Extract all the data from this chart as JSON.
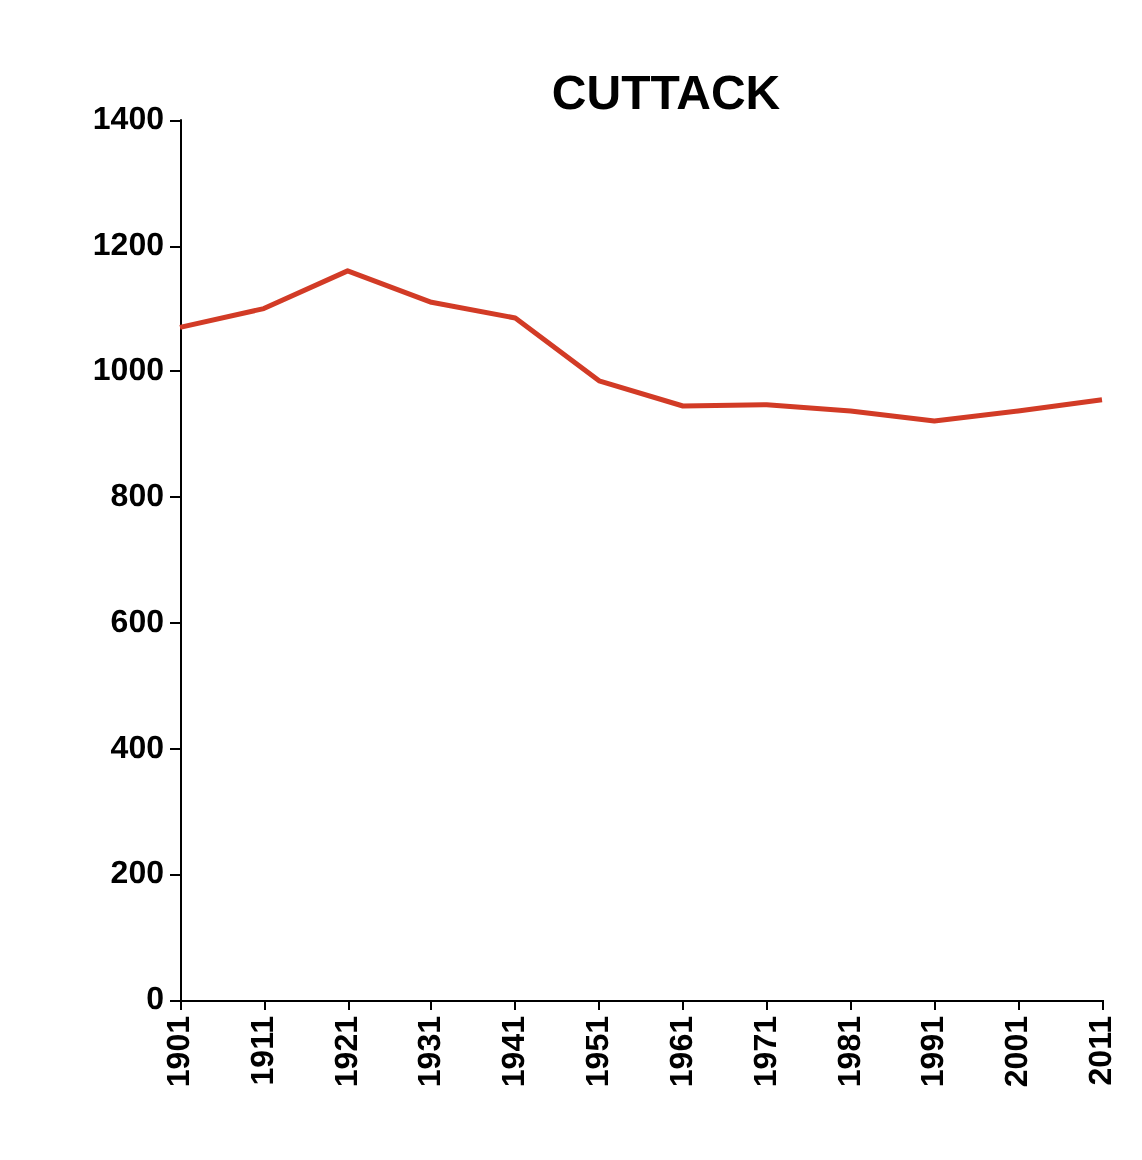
{
  "chart_data": {
    "type": "line",
    "title": "CUTTACK",
    "categories": [
      "1901",
      "1911",
      "1921",
      "1931",
      "1941",
      "1951",
      "1961",
      "1971",
      "1981",
      "1991",
      "2001",
      "2011"
    ],
    "series": [
      {
        "color": "#d23b26",
        "values": [
          1070,
          1100,
          1160,
          1110,
          1085,
          985,
          945,
          947,
          937,
          921,
          937,
          955
        ]
      }
    ],
    "ylim": [
      0,
      1400
    ],
    "yticks": [
      0,
      200,
      400,
      600,
      800,
      1000,
      1200,
      1400
    ],
    "grid": false,
    "marker": "none",
    "line_style": "solid"
  }
}
